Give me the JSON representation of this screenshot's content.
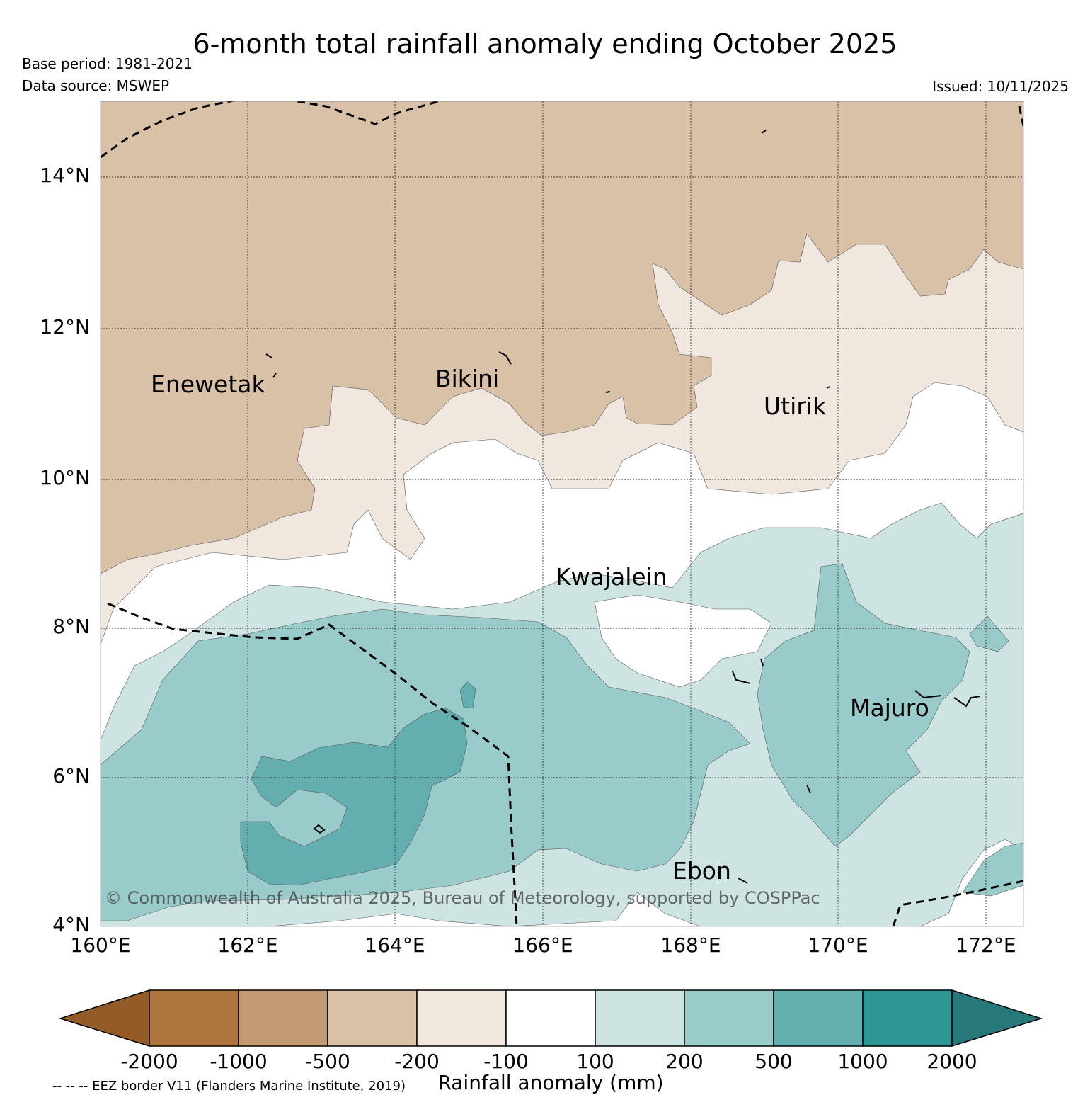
{
  "header": {
    "title": "6-month total rainfall anomaly ending October 2025",
    "base_period": "Base period: 1981-2021",
    "data_source": "Data source: MSWEP",
    "issued": "Issued: 10/11/2025"
  },
  "map": {
    "lat_labels": [
      "14°N",
      "12°N",
      "10°N",
      "8°N",
      "6°N",
      "4°N"
    ],
    "lon_labels": [
      "160°E",
      "162°E",
      "164°E",
      "166°E",
      "168°E",
      "170°E",
      "172°E"
    ],
    "places": {
      "enewetak": "Enewetak",
      "bikini": "Bikini",
      "utirik": "Utirik",
      "kwajalein": "Kwajalein",
      "majuro": "Majuro",
      "ebon": "Ebon"
    },
    "copyright": "© Commonwealth of Australia 2025, Bureau of Meteorology, supported by COSPPac"
  },
  "legend": {
    "title": "Rainfall anomaly (mm)",
    "ticks": [
      "-2000",
      "-1000",
      "-500",
      "-200",
      "-100",
      "100",
      "200",
      "500",
      "1000",
      "2000"
    ],
    "colors": [
      "#935b27",
      "#ad763f",
      "#c39b72",
      "#d9c1a8",
      "#f0e7de",
      "#ffffff",
      "#cde4e3",
      "#9acbcb",
      "#63afaf",
      "#2f9793",
      "#26787a"
    ],
    "eez_note": "-- -- -- EEZ border V11 (Flanders Marine Institute, 2019)"
  }
}
